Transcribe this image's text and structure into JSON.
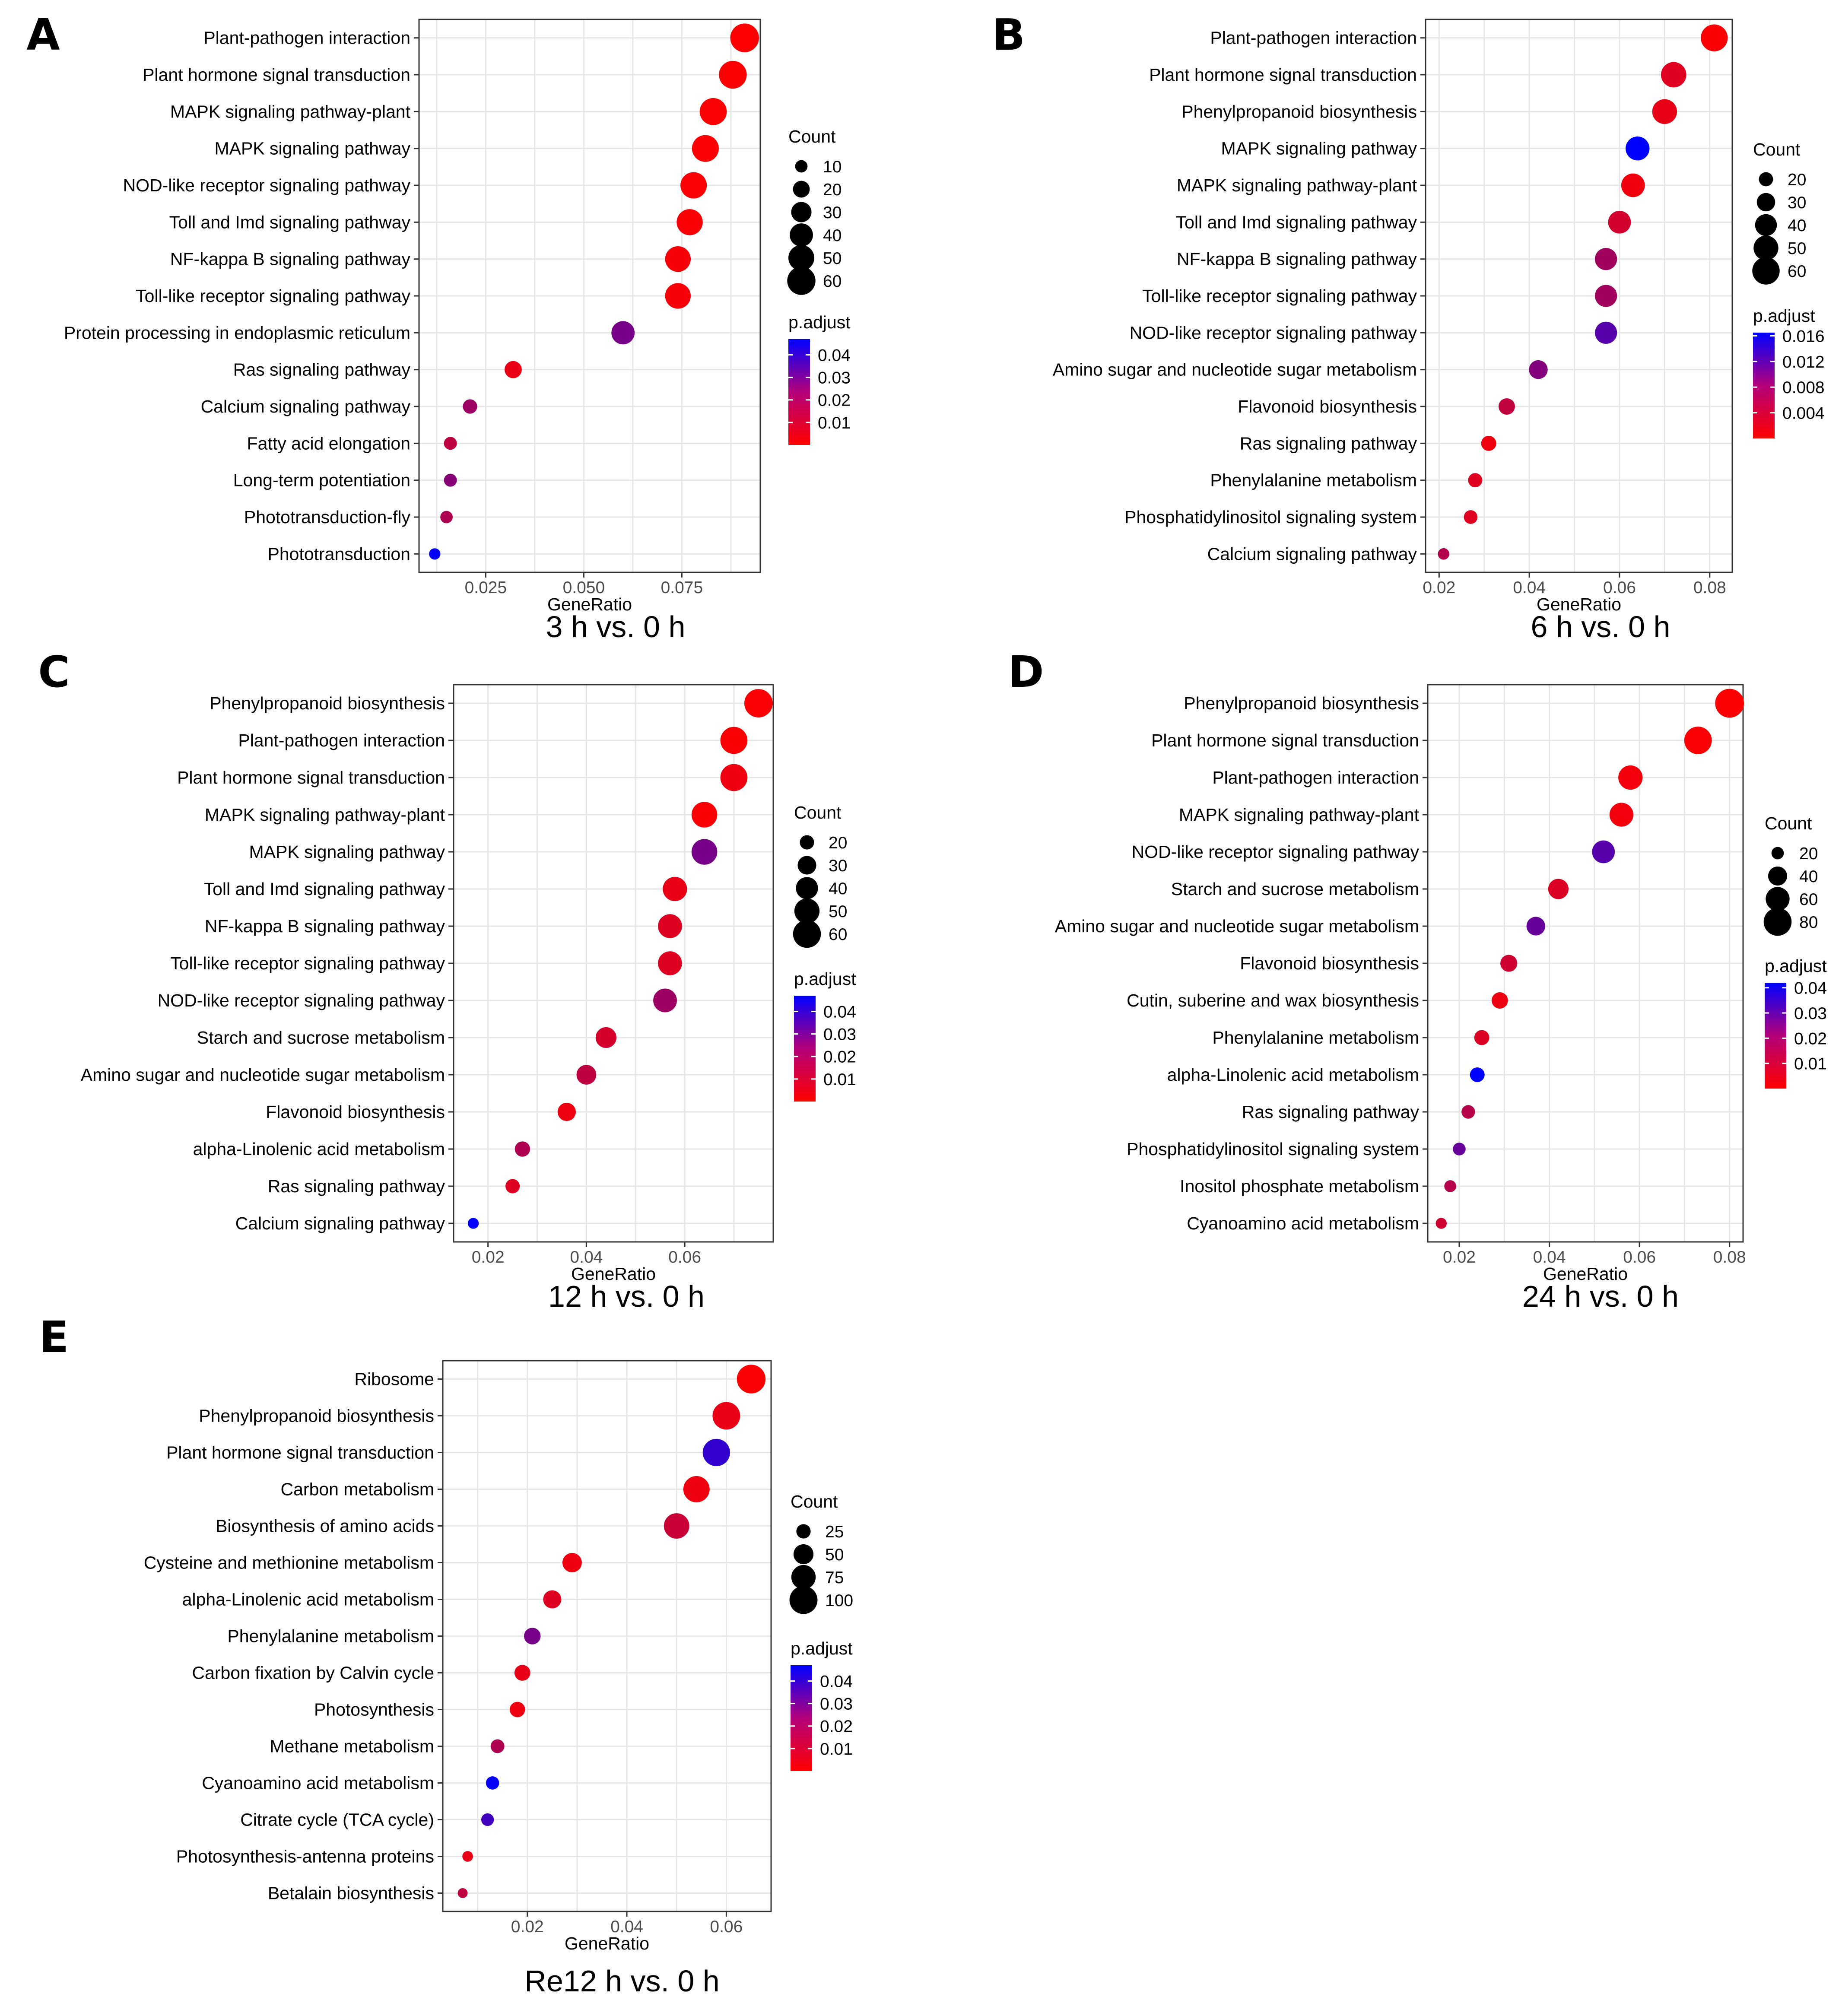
{
  "figure": {
    "colors": {
      "low_p": "#ff0000",
      "high_p": "#0000ff",
      "grid": "#e6e6e6",
      "border": "#333333"
    }
  },
  "chart_data": [
    {
      "type": "scatter",
      "panel_letter": "A",
      "caption": "3 h vs. 0 h",
      "xlabel": "GeneRatio",
      "ylabel": "",
      "xlim": [
        0.008,
        0.095
      ],
      "xticks": [
        0.025,
        0.05,
        0.075
      ],
      "xtick_labels": [
        "0.025",
        "0.050",
        "0.075"
      ],
      "size_legend": {
        "title": "Count",
        "values": [
          10,
          20,
          30,
          40,
          50,
          60
        ],
        "labels": [
          "10",
          "20",
          "30",
          "40",
          "50",
          "60"
        ],
        "range": [
          5,
          65
        ]
      },
      "color_legend": {
        "title": "p.adjust",
        "min": 0.0,
        "max": 0.047,
        "ticks": [
          0.04,
          0.03,
          0.02,
          0.01
        ],
        "tick_labels": [
          "0.04",
          "0.03",
          "0.02",
          "0.01"
        ]
      },
      "points": [
        {
          "term": "Plant-pathogen interaction",
          "gene_ratio": 0.091,
          "count": 62,
          "p_adjust": 0.0002
        },
        {
          "term": "Plant hormone signal transduction",
          "gene_ratio": 0.088,
          "count": 58,
          "p_adjust": 0.0004
        },
        {
          "term": "MAPK signaling pathway-plant",
          "gene_ratio": 0.083,
          "count": 55,
          "p_adjust": 0.0005
        },
        {
          "term": "MAPK signaling pathway",
          "gene_ratio": 0.081,
          "count": 54,
          "p_adjust": 0.0006
        },
        {
          "term": "NOD-like receptor signaling pathway",
          "gene_ratio": 0.078,
          "count": 52,
          "p_adjust": 0.0008
        },
        {
          "term": "Toll and Imd signaling pathway",
          "gene_ratio": 0.077,
          "count": 51,
          "p_adjust": 0.001
        },
        {
          "term": "NF-kappa B signaling pathway",
          "gene_ratio": 0.074,
          "count": 49,
          "p_adjust": 0.0012
        },
        {
          "term": "Toll-like receptor signaling pathway",
          "gene_ratio": 0.074,
          "count": 49,
          "p_adjust": 0.0012
        },
        {
          "term": "Protein processing in endoplasmic reticulum",
          "gene_ratio": 0.06,
          "count": 40,
          "p_adjust": 0.025
        },
        {
          "term": "Ras signaling pathway",
          "gene_ratio": 0.032,
          "count": 21,
          "p_adjust": 0.004
        },
        {
          "term": "Calcium signaling pathway",
          "gene_ratio": 0.021,
          "count": 14,
          "p_adjust": 0.018
        },
        {
          "term": "Fatty acid elongation",
          "gene_ratio": 0.016,
          "count": 11,
          "p_adjust": 0.012
        },
        {
          "term": "Long-term potentiation",
          "gene_ratio": 0.016,
          "count": 11,
          "p_adjust": 0.022
        },
        {
          "term": "Phototransduction-fly",
          "gene_ratio": 0.015,
          "count": 10,
          "p_adjust": 0.015
        },
        {
          "term": "Phototransduction",
          "gene_ratio": 0.012,
          "count": 8,
          "p_adjust": 0.046
        }
      ]
    },
    {
      "type": "scatter",
      "panel_letter": "B",
      "caption": "6 h vs. 0 h",
      "xlabel": "GeneRatio",
      "ylabel": "",
      "xlim": [
        0.017,
        0.085
      ],
      "xticks": [
        0.02,
        0.04,
        0.06,
        0.08
      ],
      "xtick_labels": [
        "0.02",
        "0.04",
        "0.06",
        "0.08"
      ],
      "size_legend": {
        "title": "Count",
        "values": [
          20,
          30,
          40,
          50,
          60
        ],
        "labels": [
          "20",
          "30",
          "40",
          "50",
          "60"
        ],
        "range": [
          12,
          68
        ]
      },
      "color_legend": {
        "title": "p.adjust",
        "min": 0.0,
        "max": 0.0165,
        "ticks": [
          0.016,
          0.012,
          0.008,
          0.004
        ],
        "tick_labels": [
          "0.016",
          "0.012",
          "0.008",
          "0.004"
        ]
      },
      "points": [
        {
          "term": "Plant-pathogen interaction",
          "gene_ratio": 0.081,
          "count": 58,
          "p_adjust": 0.0003
        },
        {
          "term": "Plant hormone signal transduction",
          "gene_ratio": 0.072,
          "count": 52,
          "p_adjust": 0.002
        },
        {
          "term": "Phenylpropanoid biosynthesis",
          "gene_ratio": 0.07,
          "count": 50,
          "p_adjust": 0.0015
        },
        {
          "term": "MAPK signaling pathway",
          "gene_ratio": 0.064,
          "count": 47,
          "p_adjust": 0.0165
        },
        {
          "term": "MAPK signaling pathway-plant",
          "gene_ratio": 0.063,
          "count": 46,
          "p_adjust": 0.001
        },
        {
          "term": "Toll and Imd signaling pathway",
          "gene_ratio": 0.06,
          "count": 43,
          "p_adjust": 0.003
        },
        {
          "term": "NF-kappa B signaling pathway",
          "gene_ratio": 0.057,
          "count": 41,
          "p_adjust": 0.006
        },
        {
          "term": "Toll-like receptor signaling pathway",
          "gene_ratio": 0.057,
          "count": 41,
          "p_adjust": 0.006
        },
        {
          "term": "NOD-like receptor signaling pathway",
          "gene_ratio": 0.057,
          "count": 41,
          "p_adjust": 0.011
        },
        {
          "term": "Amino sugar and nucleotide sugar metabolism",
          "gene_ratio": 0.042,
          "count": 31,
          "p_adjust": 0.008
        },
        {
          "term": "Flavonoid biosynthesis",
          "gene_ratio": 0.035,
          "count": 25,
          "p_adjust": 0.004
        },
        {
          "term": "Ras signaling pathway",
          "gene_ratio": 0.031,
          "count": 22,
          "p_adjust": 0.001
        },
        {
          "term": "Phenylalanine metabolism",
          "gene_ratio": 0.028,
          "count": 20,
          "p_adjust": 0.002
        },
        {
          "term": "Phosphatidylinositol signaling system",
          "gene_ratio": 0.027,
          "count": 19,
          "p_adjust": 0.002
        },
        {
          "term": "Calcium signaling pathway",
          "gene_ratio": 0.021,
          "count": 15,
          "p_adjust": 0.005
        }
      ]
    },
    {
      "type": "scatter",
      "panel_letter": "C",
      "caption": "12 h vs. 0 h",
      "xlabel": "GeneRatio",
      "ylabel": "",
      "xlim": [
        0.013,
        0.078
      ],
      "xticks": [
        0.02,
        0.04,
        0.06
      ],
      "xtick_labels": [
        "0.02",
        "0.04",
        "0.06"
      ],
      "size_legend": {
        "title": "Count",
        "values": [
          20,
          30,
          40,
          50,
          60
        ],
        "labels": [
          "20",
          "30",
          "40",
          "50",
          "60"
        ],
        "range": [
          12,
          66
        ]
      },
      "color_legend": {
        "title": "p.adjust",
        "min": 0.0,
        "max": 0.047,
        "ticks": [
          0.04,
          0.03,
          0.02,
          0.01
        ],
        "tick_labels": [
          "0.04",
          "0.03",
          "0.02",
          "0.01"
        ]
      },
      "points": [
        {
          "term": "Phenylpropanoid biosynthesis",
          "gene_ratio": 0.075,
          "count": 62,
          "p_adjust": 0.0005
        },
        {
          "term": "Plant-pathogen interaction",
          "gene_ratio": 0.07,
          "count": 57,
          "p_adjust": 0.001
        },
        {
          "term": "Plant hormone signal transduction",
          "gene_ratio": 0.07,
          "count": 57,
          "p_adjust": 0.003
        },
        {
          "term": "MAPK signaling pathway-plant",
          "gene_ratio": 0.064,
          "count": 52,
          "p_adjust": 0.001
        },
        {
          "term": "MAPK signaling pathway",
          "gene_ratio": 0.064,
          "count": 52,
          "p_adjust": 0.025
        },
        {
          "term": "Toll and Imd signaling pathway",
          "gene_ratio": 0.058,
          "count": 47,
          "p_adjust": 0.004
        },
        {
          "term": "NF-kappa B signaling pathway",
          "gene_ratio": 0.057,
          "count": 46,
          "p_adjust": 0.006
        },
        {
          "term": "Toll-like receptor signaling  pathway",
          "gene_ratio": 0.057,
          "count": 46,
          "p_adjust": 0.006
        },
        {
          "term": "NOD-like receptor signaling  pathway",
          "gene_ratio": 0.056,
          "count": 45,
          "p_adjust": 0.018
        },
        {
          "term": "Starch and sucrose metabolism",
          "gene_ratio": 0.044,
          "count": 36,
          "p_adjust": 0.008
        },
        {
          "term": "Amino sugar and nucleotide sugar metabolism",
          "gene_ratio": 0.04,
          "count": 33,
          "p_adjust": 0.012
        },
        {
          "term": "Flavonoid biosynthesis",
          "gene_ratio": 0.036,
          "count": 29,
          "p_adjust": 0.003
        },
        {
          "term": "alpha-Linolenic acid  metabolism",
          "gene_ratio": 0.027,
          "count": 22,
          "p_adjust": 0.015
        },
        {
          "term": "Ras signaling pathway",
          "gene_ratio": 0.025,
          "count": 20,
          "p_adjust": 0.006
        },
        {
          "term": "Calcium signaling pathway",
          "gene_ratio": 0.017,
          "count": 14,
          "p_adjust": 0.047
        }
      ]
    },
    {
      "type": "scatter",
      "panel_letter": "D",
      "caption": "24 h vs. 0 h",
      "xlabel": "GeneRatio",
      "ylabel": "",
      "xlim": [
        0.013,
        0.083
      ],
      "xticks": [
        0.02,
        0.04,
        0.06,
        0.08
      ],
      "xtick_labels": [
        "0.02",
        "0.04",
        "0.06",
        "0.08"
      ],
      "size_legend": {
        "title": "Count",
        "values": [
          20,
          40,
          60,
          80
        ],
        "labels": [
          "20",
          "40",
          "60",
          "80"
        ],
        "range": [
          14,
          88
        ]
      },
      "color_legend": {
        "title": "p.adjust",
        "min": 0.0,
        "max": 0.042,
        "ticks": [
          0.04,
          0.03,
          0.02,
          0.01
        ],
        "tick_labels": [
          "0.04",
          "0.03",
          "0.02",
          "0.01"
        ]
      },
      "points": [
        {
          "term": "Phenylpropanoid biosynthesis",
          "gene_ratio": 0.08,
          "count": 85,
          "p_adjust": 0.0003
        },
        {
          "term": "Plant hormone signal transduction",
          "gene_ratio": 0.073,
          "count": 78,
          "p_adjust": 0.0005
        },
        {
          "term": "Plant-pathogen interaction",
          "gene_ratio": 0.058,
          "count": 62,
          "p_adjust": 0.002
        },
        {
          "term": "MAPK signaling pathway-plant",
          "gene_ratio": 0.056,
          "count": 60,
          "p_adjust": 0.002
        },
        {
          "term": "NOD-like receptor signaling pathway",
          "gene_ratio": 0.052,
          "count": 55,
          "p_adjust": 0.028
        },
        {
          "term": "Starch and sucrose metabolism",
          "gene_ratio": 0.042,
          "count": 45,
          "p_adjust": 0.006
        },
        {
          "term": "Amino sugar and nucleotide  sugar metabolism",
          "gene_ratio": 0.037,
          "count": 39,
          "p_adjust": 0.025
        },
        {
          "term": "Flavonoid biosynthesis",
          "gene_ratio": 0.031,
          "count": 33,
          "p_adjust": 0.008
        },
        {
          "term": "Cutin, suberine and wax biosynthesis",
          "gene_ratio": 0.029,
          "count": 31,
          "p_adjust": 0.003
        },
        {
          "term": "Phenylalanine metabolism",
          "gene_ratio": 0.025,
          "count": 27,
          "p_adjust": 0.006
        },
        {
          "term": "alpha-Linolenic acid metabolism",
          "gene_ratio": 0.024,
          "count": 26,
          "p_adjust": 0.042
        },
        {
          "term": "Ras signaling pathway",
          "gene_ratio": 0.022,
          "count": 23,
          "p_adjust": 0.012
        },
        {
          "term": "Phosphatidylinositol signaling system",
          "gene_ratio": 0.02,
          "count": 21,
          "p_adjust": 0.025
        },
        {
          "term": "Inositol phosphate metabolism",
          "gene_ratio": 0.018,
          "count": 19,
          "p_adjust": 0.012
        },
        {
          "term": "Cyanoamino acid metabolism",
          "gene_ratio": 0.016,
          "count": 17,
          "p_adjust": 0.008
        }
      ]
    },
    {
      "type": "scatter",
      "panel_letter": "E",
      "caption": "Re12 h vs. 0 h",
      "xlabel": "GeneRatio",
      "ylabel": "",
      "xlim": [
        0.003,
        0.069
      ],
      "xticks": [
        0.02,
        0.04,
        0.06
      ],
      "xtick_labels": [
        "0.02",
        "0.04",
        "0.06"
      ],
      "size_legend": {
        "title": "Count",
        "values": [
          25,
          50,
          75,
          100
        ],
        "labels": [
          "25",
          "50",
          "75",
          "100"
        ],
        "range": [
          10,
          110
        ]
      },
      "color_legend": {
        "title": "p.adjust",
        "min": 0.0,
        "max": 0.047,
        "ticks": [
          0.04,
          0.03,
          0.02,
          0.01
        ],
        "tick_labels": [
          "0.04",
          "0.03",
          "0.02",
          "0.01"
        ]
      },
      "points": [
        {
          "term": "Ribosome",
          "gene_ratio": 0.065,
          "count": 105,
          "p_adjust": 0.0005
        },
        {
          "term": "Phenylpropanoid biosynthesis",
          "gene_ratio": 0.06,
          "count": 97,
          "p_adjust": 0.004
        },
        {
          "term": "Plant hormone signal transduction",
          "gene_ratio": 0.058,
          "count": 95,
          "p_adjust": 0.038
        },
        {
          "term": "Carbon metabolism",
          "gene_ratio": 0.054,
          "count": 88,
          "p_adjust": 0.003
        },
        {
          "term": "Biosynthesis of amino acids",
          "gene_ratio": 0.05,
          "count": 82,
          "p_adjust": 0.01
        },
        {
          "term": "Cysteine and methionine metabolism",
          "gene_ratio": 0.029,
          "count": 47,
          "p_adjust": 0.003
        },
        {
          "term": "alpha-Linolenic acid  metabolism",
          "gene_ratio": 0.025,
          "count": 41,
          "p_adjust": 0.006
        },
        {
          "term": "Phenylalanine metabolism",
          "gene_ratio": 0.021,
          "count": 34,
          "p_adjust": 0.025
        },
        {
          "term": "Carbon fixation by Calvin cycle",
          "gene_ratio": 0.019,
          "count": 31,
          "p_adjust": 0.004
        },
        {
          "term": "Photosynthesis",
          "gene_ratio": 0.018,
          "count": 29,
          "p_adjust": 0.003
        },
        {
          "term": "Methane metabolism",
          "gene_ratio": 0.014,
          "count": 23,
          "p_adjust": 0.015
        },
        {
          "term": "Cyanoamino acid metabolism",
          "gene_ratio": 0.013,
          "count": 21,
          "p_adjust": 0.046
        },
        {
          "term": "Citrate cycle (TCA cycle)",
          "gene_ratio": 0.012,
          "count": 19,
          "p_adjust": 0.035
        },
        {
          "term": "Photosynthesis-antenna proteins",
          "gene_ratio": 0.008,
          "count": 13,
          "p_adjust": 0.004
        },
        {
          "term": "Betalain biosynthesis",
          "gene_ratio": 0.007,
          "count": 11,
          "p_adjust": 0.012
        }
      ]
    }
  ]
}
